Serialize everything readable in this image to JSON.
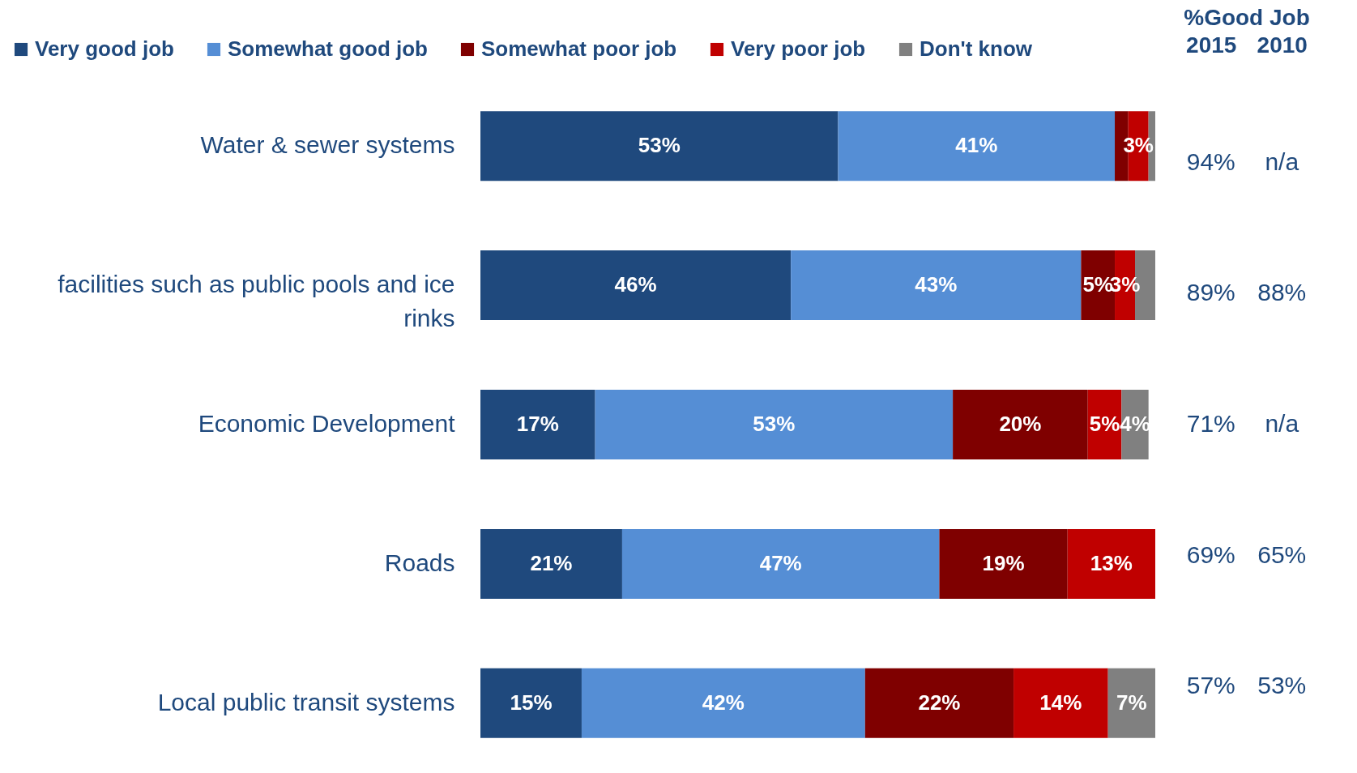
{
  "chart_data": {
    "type": "bar",
    "orientation": "horizontal",
    "stacked": true,
    "legend": "top left",
    "categories": [
      "Water & sewer systems",
      "facilities such as public pools and ice rinks",
      "Economic Development",
      "Roads",
      "Local public transit systems"
    ],
    "xlim": [
      0,
      100
    ],
    "tick_labels": "y",
    "series": [
      {
        "name": "Very good job",
        "color": "#1f497d",
        "values": [
          53,
          46,
          17,
          21,
          15
        ],
        "value_labels": [
          "53%",
          "46%",
          "17%",
          "21%",
          "15%"
        ]
      },
      {
        "name": "Somewhat good job",
        "color": "#558ed5",
        "values": [
          41,
          43,
          53,
          47,
          42
        ],
        "value_labels": [
          "41%",
          "43%",
          "53%",
          "47%",
          "42%"
        ]
      },
      {
        "name": "Somewhat poor job",
        "color": "#7f0000",
        "values": [
          2,
          5,
          20,
          19,
          22
        ],
        "value_labels": [
          null,
          "5%",
          "20%",
          "19%",
          "22%"
        ]
      },
      {
        "name": "Very poor job",
        "color": "#c00000",
        "values": [
          3,
          3,
          5,
          13,
          14
        ],
        "value_labels": [
          "3%",
          "3%",
          "5%",
          "13%",
          "14%"
        ]
      },
      {
        "name": "Don't know",
        "color": "#808080",
        "values": [
          1,
          3,
          4,
          0,
          7
        ],
        "value_labels": [
          null,
          null,
          "4%",
          null,
          "7%"
        ]
      }
    ],
    "annotations": [
      "%Good Job",
      "2015",
      "2010",
      "94%",
      "n/a",
      "89%",
      "88%",
      "71%",
      "n/a",
      "69%",
      "65%",
      "57%",
      "53%"
    ]
  }
}
